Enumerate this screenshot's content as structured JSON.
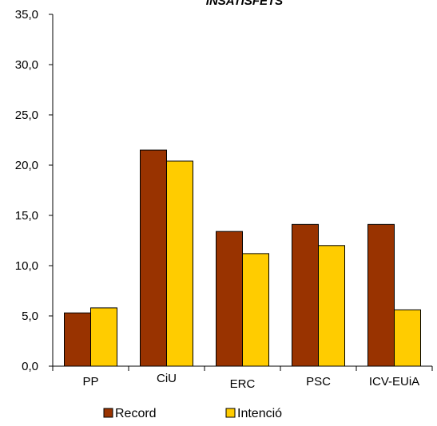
{
  "chart_data": {
    "type": "bar",
    "title": "INSATISFETS",
    "xlabel": "",
    "ylabel": "",
    "ylim": [
      0,
      35
    ],
    "yticks": [
      "0,0",
      "5,0",
      "10,0",
      "15,0",
      "20,0",
      "25,0",
      "30,0",
      "35,0"
    ],
    "categories": [
      "PP",
      "CiU",
      "ERC",
      "PSC",
      "ICV-EUiA"
    ],
    "series": [
      {
        "name": "Record",
        "color": "#993300",
        "values": [
          5.3,
          21.5,
          13.4,
          14.1,
          14.1
        ]
      },
      {
        "name": "Intenció",
        "color": "#FFCC00",
        "values": [
          5.8,
          20.4,
          11.2,
          12.0,
          5.6
        ]
      }
    ],
    "grid": false,
    "legend_position": "bottom"
  }
}
